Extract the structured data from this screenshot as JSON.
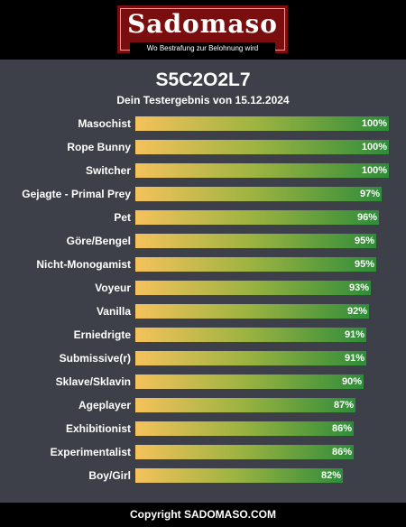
{
  "header": {
    "brand": "Sadomaso",
    "tagline": "Wo Bestrafung zur Belohnung wird"
  },
  "footer": {
    "copyright": "Copyright SADOMASO.COM"
  },
  "chart_data": {
    "type": "bar",
    "orientation": "horizontal",
    "title": "S5C2O2L7",
    "subtitle": "Dein Testergebnis von 15.12.2024",
    "unit": "%",
    "xlim": [
      0,
      100
    ],
    "grid": false,
    "colors": {
      "gradient_start": "#f5c25b",
      "gradient_mid": "#9cb341",
      "gradient_end": "#2f8c3a",
      "background": "#3d4048"
    },
    "categories": [
      "Masochist",
      "Rope Bunny",
      "Switcher",
      "Gejagte - Primal Prey",
      "Pet",
      "Göre/Bengel",
      "Nicht-Monogamist",
      "Voyeur",
      "Vanilla",
      "Erniedrigte",
      "Submissive(r)",
      "Sklave/Sklavin",
      "Ageplayer",
      "Exhibitionist",
      "Experimentalist",
      "Boy/Girl"
    ],
    "values": [
      100,
      100,
      100,
      97,
      96,
      95,
      95,
      93,
      92,
      91,
      91,
      90,
      87,
      86,
      86,
      82
    ],
    "value_labels": [
      "100%",
      "100%",
      "100%",
      "97%",
      "96%",
      "95%",
      "95%",
      "93%",
      "92%",
      "91%",
      "91%",
      "90%",
      "87%",
      "86%",
      "86%",
      "82%"
    ]
  }
}
